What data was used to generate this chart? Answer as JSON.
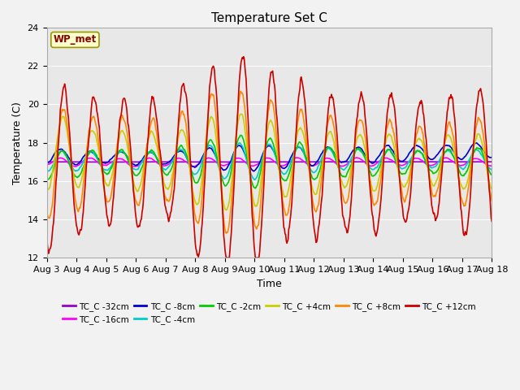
{
  "title": "Temperature Set C",
  "xlabel": "Time",
  "ylabel": "Temperature (C)",
  "ylim": [
    12,
    24
  ],
  "yticks": [
    12,
    14,
    16,
    18,
    20,
    22,
    24
  ],
  "x_tick_labels": [
    "Aug 3",
    "Aug 4",
    "Aug 5",
    "Aug 6",
    "Aug 7",
    "Aug 8",
    "Aug 9",
    "Aug 10",
    "Aug 11",
    "Aug 12",
    "Aug 13",
    "Aug 14",
    "Aug 15",
    "Aug 16",
    "Aug 17",
    "Aug 18"
  ],
  "annotation_text": "WP_met",
  "annotation_color": "#8B0000",
  "annotation_bg": "#FFFFCC",
  "annotation_edge": "#999900",
  "series": [
    {
      "label": "TC_C -32cm",
      "color": "#9900CC"
    },
    {
      "label": "TC_C -16cm",
      "color": "#FF00FF"
    },
    {
      "label": "TC_C -8cm",
      "color": "#0000CC"
    },
    {
      "label": "TC_C -4cm",
      "color": "#00CCCC"
    },
    {
      "label": "TC_C -2cm",
      "color": "#00CC00"
    },
    {
      "label": "TC_C +4cm",
      "color": "#CCCC00"
    },
    {
      "label": "TC_C +8cm",
      "color": "#FF8800"
    },
    {
      "label": "TC_C +12cm",
      "color": "#CC0000"
    }
  ],
  "bg_color": "#E8E8E8",
  "fig_facecolor": "#F2F2F2",
  "grid_color": "#FFFFFF",
  "linewidth": 1.2,
  "n_days": 15,
  "pts_per_day": 48,
  "seed": 12345
}
